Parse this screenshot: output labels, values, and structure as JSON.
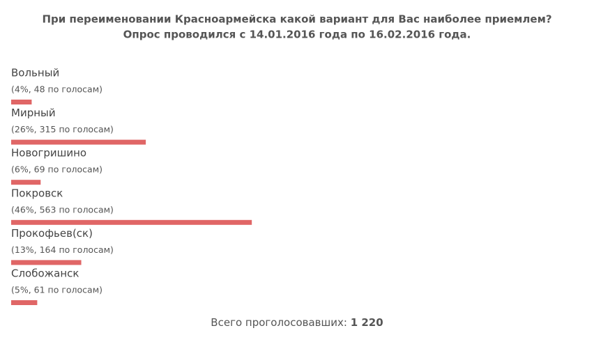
{
  "chart_data": {
    "type": "bar",
    "title": "При переименовании Красноармейска какой вариант для Вас наиболее приемлем?",
    "subtitle": "Опрос проводился с 14.01.2016 года по 16.02.2016 года.",
    "categories": [
      "Вольный",
      "Мирный",
      "Новогришино",
      "Покровск",
      "Прокофьев(ск)",
      "Слобожанск"
    ],
    "values": [
      48,
      315,
      69,
      563,
      164,
      61
    ],
    "value_labels": [
      "(4%, 48 по голосам)",
      "(26%, 315 по голосам)",
      "(6%, 69 по голосам)",
      "(46%, 563 по голосам)",
      "(13%, 164 по голосам)",
      "(5%, 61 по голосам)"
    ],
    "color": "#e06666",
    "total_label": "Всего проголосовавших:",
    "total": {
      "value": 1220,
      "label": "1 220"
    }
  }
}
